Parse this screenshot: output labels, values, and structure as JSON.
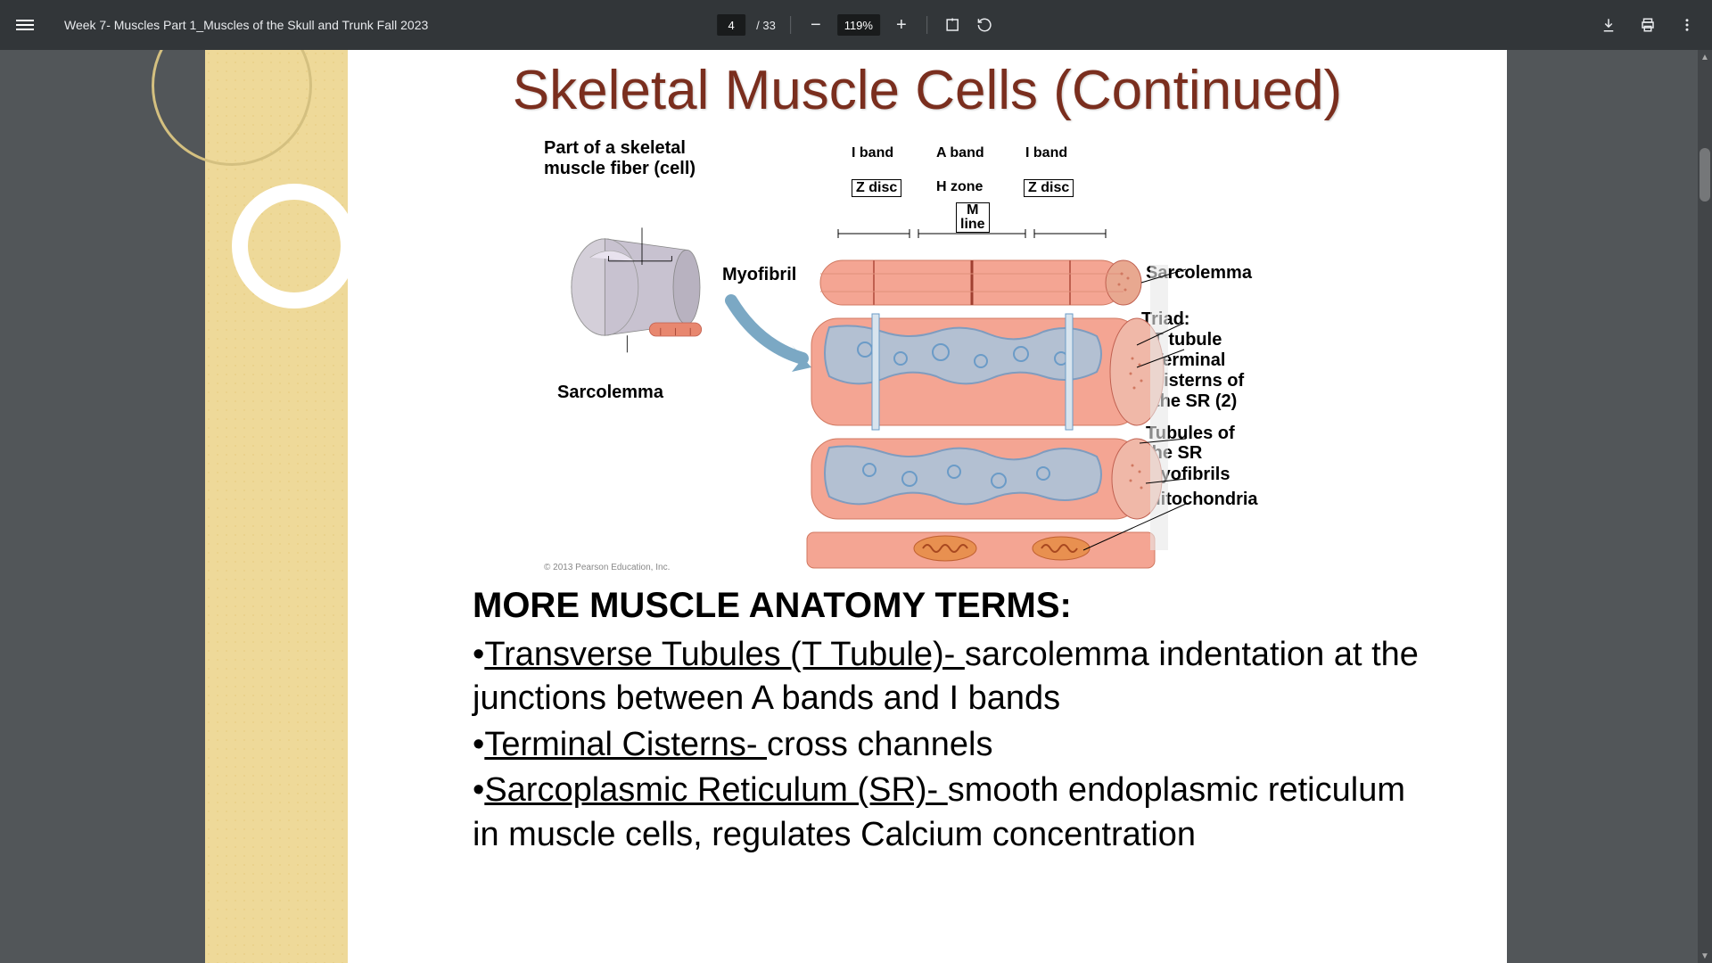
{
  "toolbar": {
    "doc_title": "Week 7- Muscles Part 1_Muscles of the Skull and Trunk Fall 2023",
    "current_page": "4",
    "total_pages": "/ 33",
    "zoom_value": "119%",
    "colors": {
      "bg": "#323639",
      "input_bg": "#191b1c",
      "text": "#e8eaed"
    }
  },
  "slide": {
    "title": "Skeletal Muscle Cells (Continued)",
    "title_color": "#7a2e1e",
    "sidebar_color": "#eed999"
  },
  "diagram": {
    "labels": {
      "fiber_title1": "Part of a skeletal",
      "fiber_title2": "muscle fiber (cell)",
      "myofibril": "Myofibril",
      "sarcolemma_left": "Sarcolemma",
      "i_band1": "I band",
      "a_band": "A band",
      "i_band2": "I band",
      "z_disc1": "Z disc",
      "h_zone": "H zone",
      "z_disc2": "Z disc",
      "m_line1": "M",
      "m_line2": "line",
      "sarcolemma_right": "Sarcolemma",
      "triad_title": "Triad:",
      "triad_b1": "• T tubule",
      "triad_b2": "• Terminal",
      "triad_b3": "  cisterns of",
      "triad_b4": "  the SR (2)",
      "tubules1": "Tubules of",
      "tubules2": "the SR",
      "myofibrils": "Myofibrils",
      "mitochondria": "Mitochondria"
    },
    "copyright": "© 2013 Pearson Education, Inc.",
    "colors": {
      "muscle_pink": "#f4a593",
      "muscle_dark": "#e8876f",
      "sr_blue": "#6b9bc7",
      "sr_light": "#a8c5dd",
      "fiber_gray": "#c8c2d0",
      "mito_orange": "#e89050"
    }
  },
  "terms": {
    "heading": "MORE MUSCLE ANATOMY TERMS:",
    "items": [
      {
        "name": "Transverse Tubules (T Tubule)- ",
        "def": "sarcolemma indentation at the junctions between A bands and I bands"
      },
      {
        "name": "Terminal Cisterns- ",
        "def": "cross channels"
      },
      {
        "name": "Sarcoplasmic Reticulum (SR)- ",
        "def": "smooth endoplasmic reticulum in muscle cells, regulates Calcium concentration"
      }
    ]
  }
}
